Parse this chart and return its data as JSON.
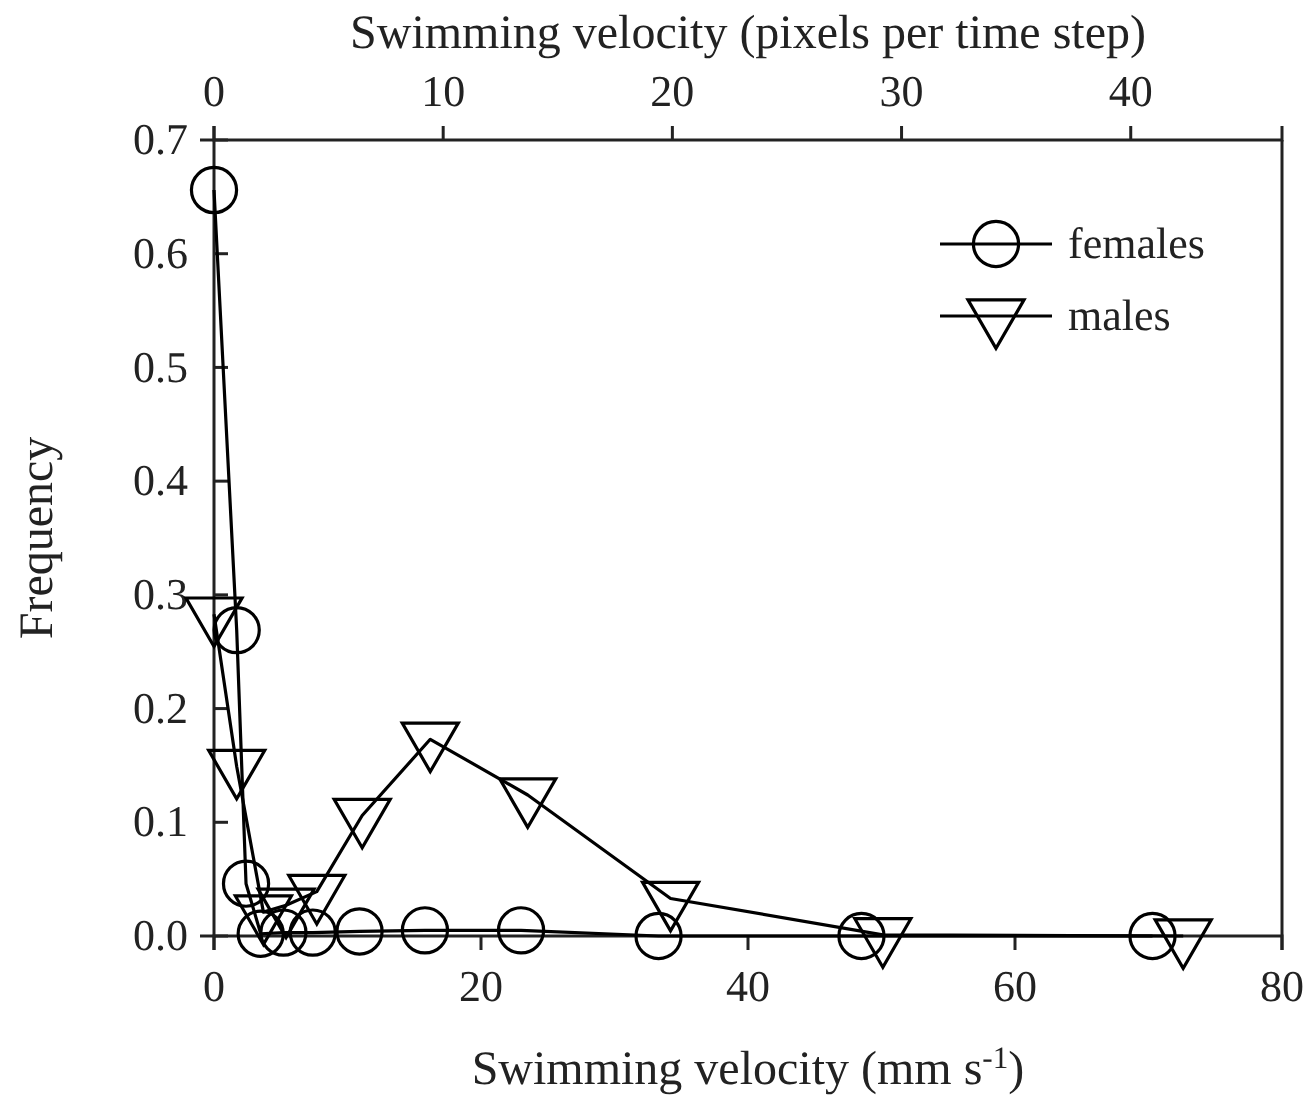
{
  "chart_data": {
    "type": "line",
    "xlabel": "Swimming velocity (mm s$^{-1}$)",
    "x2label": "Swimming velocity (pixels per time step)",
    "ylabel": "Frequency",
    "xlim": [
      0,
      80
    ],
    "xticks": [
      0,
      20,
      40,
      60,
      80
    ],
    "x2lim": [
      0,
      46.6
    ],
    "x2ticks": [
      0,
      10,
      20,
      30,
      40
    ],
    "ylim": [
      0,
      0.7
    ],
    "yticks": [
      {
        "value": 0,
        "label": "0.0"
      },
      0.1,
      0.2,
      0.3,
      0.4,
      0.5,
      0.6,
      0.7
    ],
    "grid": false,
    "legend": "top right",
    "line_style": "solid",
    "series": [
      {
        "name": "females",
        "color": "#000000",
        "marker": "circle",
        "x": [
          0,
          1.7,
          2.4,
          3.5,
          5.2,
          7.4,
          10.9,
          15.8,
          23.0,
          33.3,
          48.5,
          70.3
        ],
        "values": [
          0.656,
          0.269,
          0.046,
          0.002,
          0.003,
          0.003,
          0.004,
          0.005,
          0.005,
          0,
          0,
          0
        ]
      },
      {
        "name": "males",
        "color": "#000000",
        "marker": "triangle-down",
        "x": [
          0,
          1.7,
          3.7,
          5.4,
          7.7,
          11.1,
          16.2,
          23.5,
          34.2,
          50.1,
          72.6
        ],
        "values": [
          0.283,
          0.149,
          0.021,
          0.027,
          0.039,
          0.106,
          0.173,
          0.124,
          0.033,
          0.001,
          0
        ]
      }
    ]
  }
}
